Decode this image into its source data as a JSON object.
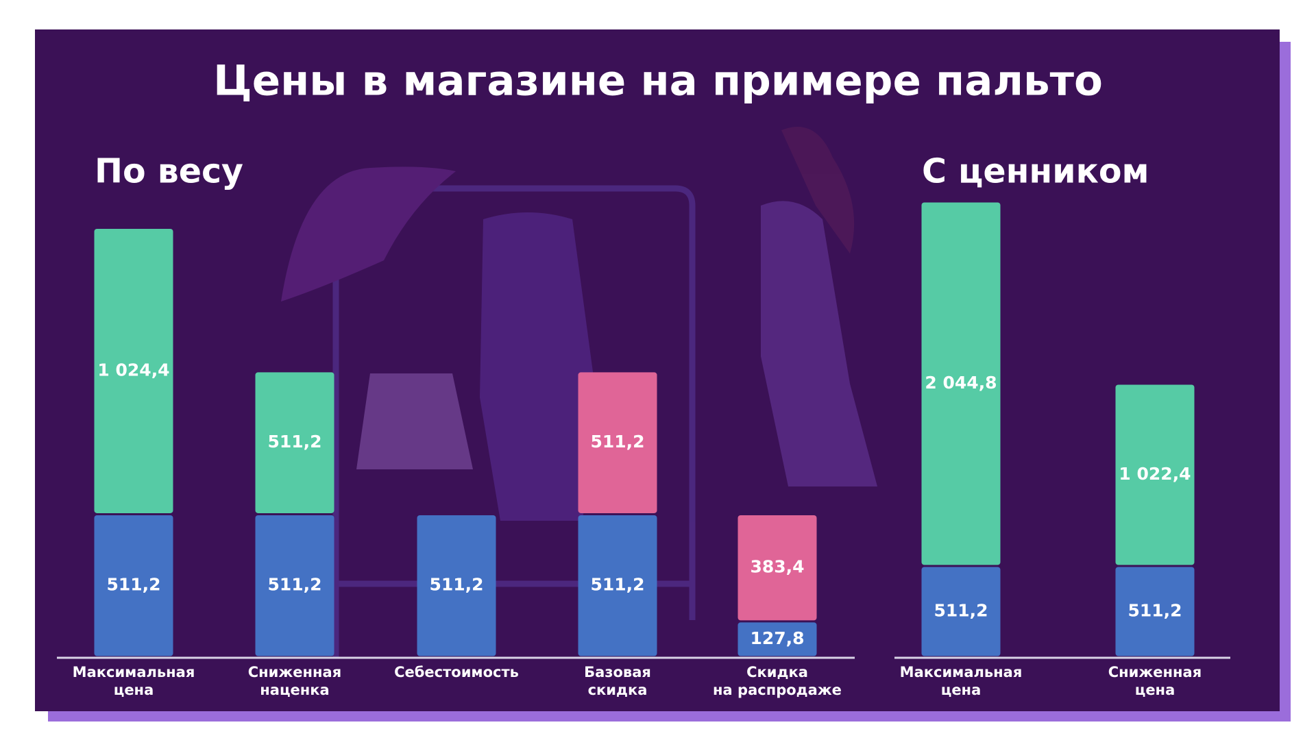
{
  "title": "Цены в магазине на примере пальто",
  "chart_data": [
    {
      "type": "bar",
      "stacked": true,
      "title": "По весу",
      "categories": [
        "Максимальная\nцена",
        "Сниженная\nнаценка",
        "Себестоимость",
        "Базовая\nскидка",
        "Скидка\nна распродаже"
      ],
      "series": [
        {
          "color": "#4472c4",
          "values": [
            511.2,
            511.2,
            511.2,
            511.2,
            127.8
          ],
          "value_labels": [
            "511,2",
            "511,2",
            "511,2",
            "511,2",
            "127,8"
          ]
        },
        {
          "color": "#e06597",
          "values": [
            null,
            null,
            null,
            511.2,
            383.4
          ],
          "value_labels": [
            null,
            null,
            null,
            "511,2",
            "383,4"
          ]
        },
        {
          "color": "#56cba5",
          "values": [
            1024.4,
            511.2,
            null,
            null,
            null
          ],
          "value_labels": [
            "1 024,4",
            "511,2",
            null,
            null,
            null
          ]
        }
      ],
      "ylim": [
        0,
        1630
      ]
    },
    {
      "type": "bar",
      "stacked": true,
      "title": "С ценником",
      "categories": [
        "Максимальная\nцена",
        "Сниженная\nцена"
      ],
      "series": [
        {
          "color": "#4472c4",
          "values": [
            511.2,
            511.2
          ],
          "value_labels": [
            "511,2",
            "511,2"
          ]
        },
        {
          "color": "#56cba5",
          "values": [
            2044.8,
            1022.4
          ],
          "value_labels": [
            "2 044,8",
            "1 022,4"
          ]
        }
      ],
      "ylim": [
        0,
        2556
      ]
    }
  ]
}
